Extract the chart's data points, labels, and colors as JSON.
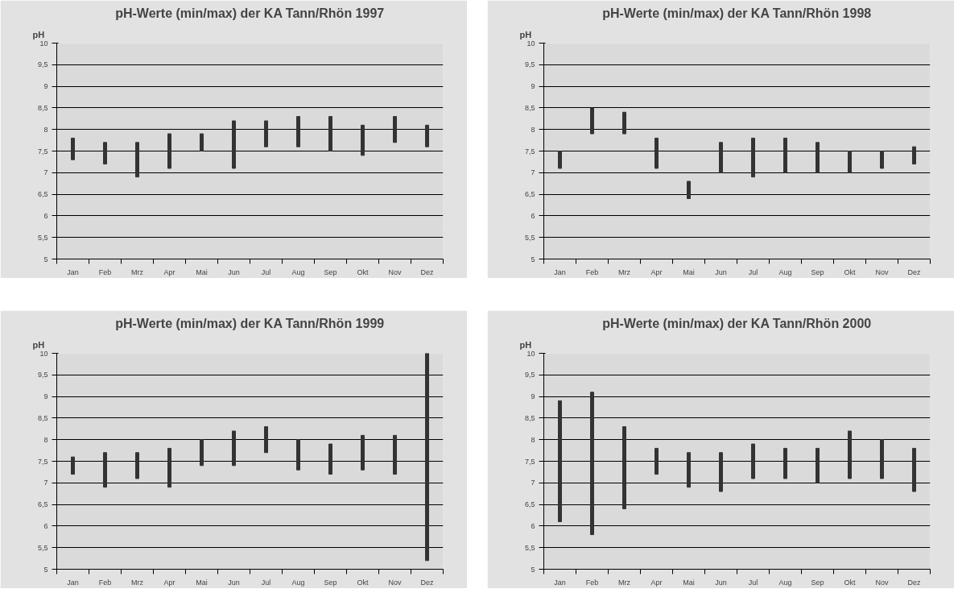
{
  "chart_data": [
    {
      "type": "bar",
      "title": "pH-Werte (min/max) der KA Tann/Rhön 1997",
      "ylabel": "pH",
      "categories": [
        "Jan",
        "Feb",
        "Mrz",
        "Apr",
        "Mai",
        "Jun",
        "Jul",
        "Aug",
        "Sep",
        "Okt",
        "Nov",
        "Dez"
      ],
      "base": [
        7.3,
        7.2,
        6.9,
        7.1,
        7.5,
        7.1,
        7.6,
        7.6,
        7.5,
        7.4,
        7.7,
        7.6
      ],
      "values": [
        0.5,
        0.5,
        0.8,
        0.8,
        0.4,
        1.1,
        0.6,
        0.7,
        0.8,
        0.7,
        0.6,
        0.5
      ],
      "color": "#333333",
      "ylim": [
        5,
        10
      ],
      "yticks": [
        5,
        {
          "value": 5.5,
          "label": "5,5"
        },
        6,
        {
          "value": 6.5,
          "label": "6,5"
        },
        7,
        {
          "value": 7.5,
          "label": "7,5"
        },
        8,
        {
          "value": 8.5,
          "label": "8,5"
        },
        9,
        {
          "value": 9.5,
          "label": "9,5"
        },
        10
      ],
      "grid": "y"
    },
    {
      "type": "bar",
      "title": "pH-Werte (min/max) der KA Tann/Rhön 1998",
      "ylabel": "pH",
      "categories": [
        "Jan",
        "Feb",
        "Mrz",
        "Apr",
        "Mai",
        "Jun",
        "Jul",
        "Aug",
        "Sep",
        "Okt",
        "Nov",
        "Dez"
      ],
      "base": [
        7.1,
        7.9,
        7.9,
        7.1,
        6.4,
        7.0,
        6.9,
        7.0,
        7.0,
        7.0,
        7.1,
        7.2
      ],
      "values": [
        0.4,
        0.6,
        0.5,
        0.7,
        0.4,
        0.7,
        0.9,
        0.8,
        0.7,
        0.5,
        0.4,
        0.4
      ],
      "color": "#333333",
      "ylim": [
        5,
        10
      ],
      "yticks": [
        5,
        {
          "value": 5.5,
          "label": "5,5"
        },
        6,
        {
          "value": 6.5,
          "label": "6,5"
        },
        7,
        {
          "value": 7.5,
          "label": "7,5"
        },
        8,
        {
          "value": 8.5,
          "label": "8,5"
        },
        9,
        {
          "value": 9.5,
          "label": "9,5"
        },
        10
      ],
      "grid": "y"
    },
    {
      "type": "bar",
      "title": "pH-Werte (min/max) der KA Tann/Rhön 1999",
      "ylabel": "pH",
      "categories": [
        "Jan",
        "Feb",
        "Mrz",
        "Apr",
        "Mai",
        "Jun",
        "Jul",
        "Aug",
        "Sep",
        "Okt",
        "Nov",
        "Dez"
      ],
      "base": [
        7.2,
        6.9,
        7.1,
        6.9,
        7.4,
        7.4,
        7.7,
        7.3,
        7.2,
        7.3,
        7.2,
        5.2
      ],
      "values": [
        0.4,
        0.8,
        0.6,
        0.9,
        0.6,
        0.8,
        0.6,
        0.7,
        0.7,
        0.8,
        0.9,
        4.8
      ],
      "color": "#333333",
      "ylim": [
        5,
        10
      ],
      "yticks": [
        5,
        {
          "value": 5.5,
          "label": "5,5"
        },
        6,
        {
          "value": 6.5,
          "label": "6,5"
        },
        7,
        {
          "value": 7.5,
          "label": "7,5"
        },
        8,
        {
          "value": 8.5,
          "label": "8,5"
        },
        9,
        {
          "value": 9.5,
          "label": "9,5"
        },
        10
      ],
      "grid": "y"
    },
    {
      "type": "bar",
      "title": "pH-Werte (min/max) der KA Tann/Rhön 2000",
      "ylabel": "pH",
      "categories": [
        "Jan",
        "Feb",
        "Mrz",
        "Apr",
        "Mai",
        "Jun",
        "Jul",
        "Aug",
        "Sep",
        "Okt",
        "Nov",
        "Dez"
      ],
      "base": [
        6.1,
        5.8,
        6.4,
        7.2,
        6.9,
        6.8,
        7.1,
        7.1,
        7.0,
        7.1,
        7.1,
        6.8
      ],
      "values": [
        2.8,
        3.3,
        1.9,
        0.6,
        0.8,
        0.9,
        0.8,
        0.7,
        0.8,
        1.1,
        0.9,
        1.0
      ],
      "color": "#333333",
      "ylim": [
        5,
        10
      ],
      "yticks": [
        5,
        {
          "value": 5.5,
          "label": "5,5"
        },
        6,
        {
          "value": 6.5,
          "label": "6,5"
        },
        7,
        {
          "value": 7.5,
          "label": "7,5"
        },
        8,
        {
          "value": 8.5,
          "label": "8,5"
        },
        9,
        {
          "value": 9.5,
          "label": "9,5"
        },
        10
      ],
      "grid": "y"
    }
  ]
}
